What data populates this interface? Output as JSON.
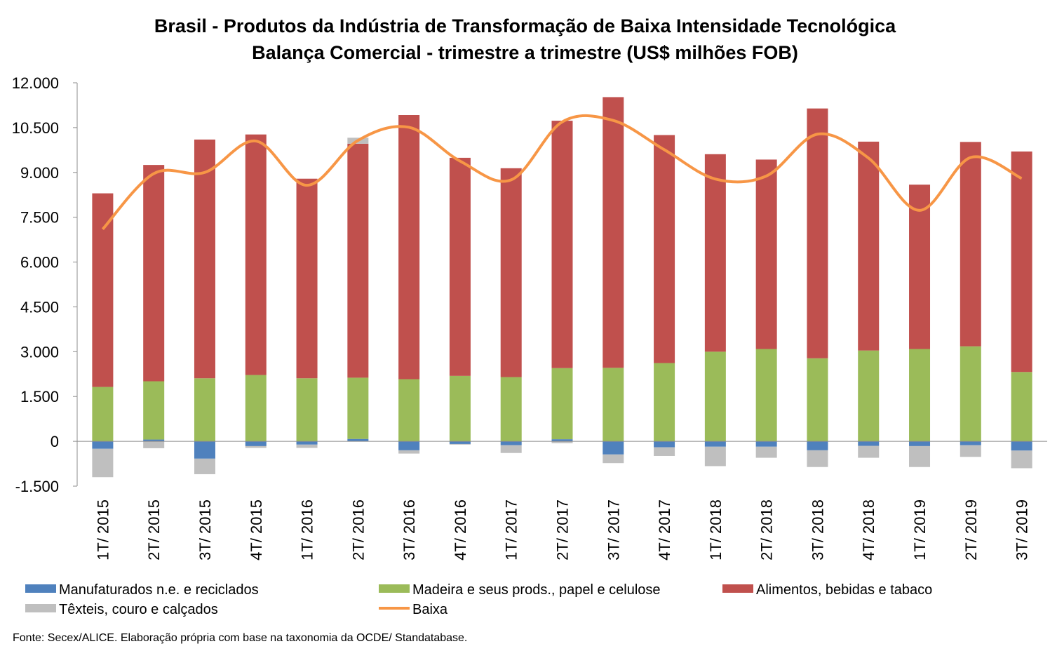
{
  "chart_data": {
    "type": "bar",
    "stacked": true,
    "title_lines": [
      "Brasil - Produtos da Indústria de Transformação de Baixa Intensidade Tecnológica",
      "Balança Comercial - trimestre a trimestre (US$ milhões FOB)"
    ],
    "categories": [
      "1T/ 2015",
      "2T/ 2015",
      "3T/ 2015",
      "4T/ 2015",
      "1T/ 2016",
      "2T/ 2016",
      "3T/ 2016",
      "4T/ 2016",
      "1T/ 2017",
      "2T/ 2017",
      "3T/ 2017",
      "4T/ 2017",
      "1T/ 2018",
      "2T/ 2018",
      "3T/ 2018",
      "4T/ 2018",
      "1T/ 2019",
      "2T/ 2019",
      "3T/ 2019"
    ],
    "ylim": [
      -1500,
      12000
    ],
    "yticks": [
      -1500,
      0,
      1500,
      3000,
      4500,
      6000,
      7500,
      9000,
      10500,
      12000
    ],
    "ytick_labels": [
      "-1.500",
      "0",
      "1.500",
      "3.000",
      "4.500",
      "6.000",
      "7.500",
      "9.000",
      "10.500",
      "12.000"
    ],
    "series": [
      {
        "name": "Manufaturados n.e. e reciclados",
        "kind": "bar",
        "color": "#4F81BD",
        "values": [
          -250,
          60,
          -580,
          -160,
          -110,
          80,
          -300,
          -90,
          -130,
          70,
          -440,
          -200,
          -180,
          -180,
          -300,
          -150,
          -160,
          -130,
          -310
        ]
      },
      {
        "name": "Madeira e seus prods., papel e celulose",
        "kind": "bar",
        "color": "#9BBB59",
        "values": [
          1820,
          1950,
          2110,
          2220,
          2110,
          2050,
          2080,
          2190,
          2150,
          2380,
          2460,
          2620,
          3000,
          3090,
          2780,
          3040,
          3090,
          3180,
          2320
        ]
      },
      {
        "name": "Alimentos, bebidas e tabaco",
        "kind": "bar",
        "color": "#C0504D",
        "values": [
          6480,
          7240,
          7990,
          8050,
          6680,
          7830,
          8840,
          7300,
          6990,
          8280,
          9060,
          7630,
          6610,
          6340,
          8360,
          6990,
          5500,
          6840,
          7380
        ]
      },
      {
        "name": "Têxteis, couro e calçados",
        "kind": "bar",
        "color": "#BFBFBF",
        "values": [
          -950,
          -230,
          -520,
          -60,
          -110,
          200,
          -110,
          -20,
          -260,
          -60,
          -290,
          -290,
          -650,
          -370,
          -560,
          -400,
          -700,
          -390,
          -590
        ]
      },
      {
        "name": "Baixa",
        "kind": "line",
        "color": "#F79646",
        "values": [
          7100,
          8960,
          9000,
          10050,
          8570,
          10070,
          10510,
          9380,
          8750,
          10690,
          10740,
          9760,
          8780,
          8880,
          10280,
          9480,
          7730,
          9500,
          8800
        ]
      }
    ],
    "legend_position": "bottom",
    "grid": false
  },
  "source_note": "Fonte: Secex/ALICE. Elaboração própria com base na taxonomia da OCDE/ Standatabase."
}
